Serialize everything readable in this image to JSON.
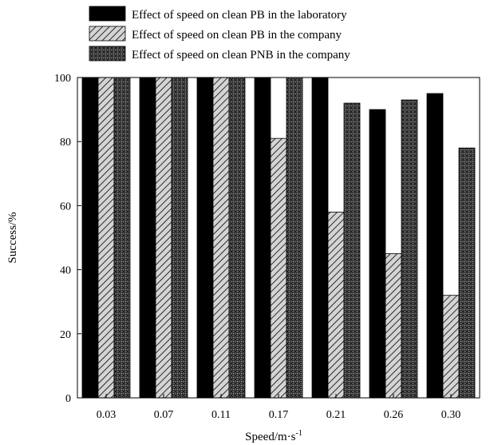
{
  "chart_data": {
    "type": "bar",
    "xlabel": "Speed/m·s",
    "xlabel_superscript": "-1",
    "ylabel": "Success/%",
    "ylim": [
      0,
      100
    ],
    "yticks": [
      0,
      20,
      40,
      60,
      80,
      100
    ],
    "categories": [
      "0.03",
      "0.07",
      "0.11",
      "0.17",
      "0.21",
      "0.26",
      "0.30"
    ],
    "legend_position": "top",
    "series": [
      {
        "name": "Effect of speed on clean PB in the laboratory",
        "pattern": "solid-black",
        "values": [
          100,
          100,
          100,
          100,
          100,
          90,
          95
        ]
      },
      {
        "name": "Effect of speed on clean PB in the company",
        "pattern": "diagonal-hatch-gray",
        "values": [
          100,
          100,
          100,
          81,
          58,
          45,
          32
        ]
      },
      {
        "name": "Effect of speed on clean PNB in the company",
        "pattern": "crosshatch-dark",
        "values": [
          100,
          100,
          100,
          100,
          92,
          93,
          78
        ]
      }
    ]
  }
}
